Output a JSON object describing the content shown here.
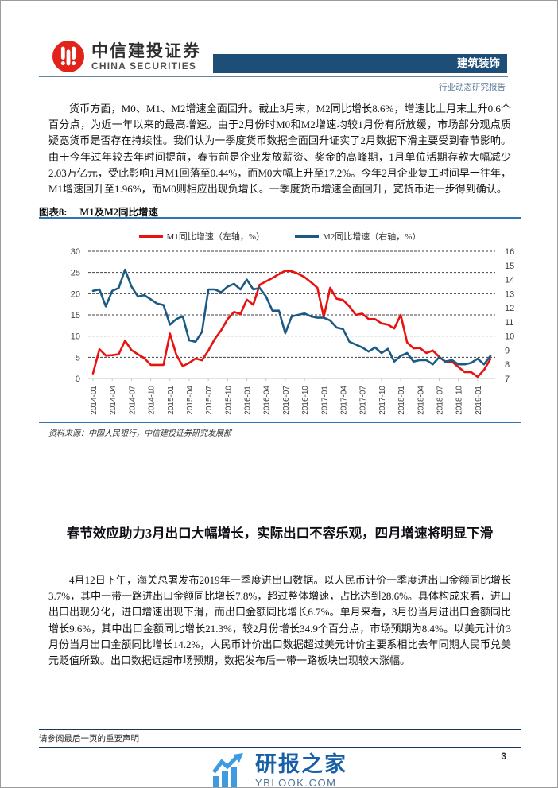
{
  "header": {
    "company_cn": "中信建投证券",
    "company_en": "CHINA SECURITIES",
    "sector": "建筑装饰",
    "report_type": "行业动态研究报告",
    "brand_red": "#e2231a",
    "sector_bar_color": "#1d4e77"
  },
  "sections": {
    "monetary_paragraph": "货币方面，M0、M1、M2增速全面回升。截止3月末，M2同比增长8.6%，增速比上月末上升0.6个百分点，为近一年以来的最高增速。由于2月份时M0和M2增速均较1月份有所放缓，市场部分观点质疑宽货币是否存在持续性。我们认为一季度货币数据全面回升证实了2月数据下滑主要受到春节影响。由于今年过年较去年时间提前，春节前是企业发放薪资、奖金的高峰期，1月单位活期存款大幅减少2.03万亿元，受此影响1月M1回落至0.44%，而M0大幅上升至17.2%。今年2月企业复工时间早于往年，M1增速回升至1.96%，而M0则相应出现负增长。一季度货币增速全面回升，宽货币进一步得到确认。",
    "export_heading": "春节效应助力3月出口大幅增长，实际出口不容乐观，四月增速将明显下滑",
    "export_paragraph": "4月12日下午，海关总署发布2019年一季度进出口数据。以人民币计价一季度进出口金额同比增长3.7%，其中一带一路进出口金额同比增长7.8%，超过整体增速，占比达到28.6%。具体构成来看，进口出口出现分化，进口增速出现下滑，而出口金额同比增长6.7%。单月来看，3月份当月进出口金额同比增长9.6%，其中出口金额同比增长21.3%，较2月份增长34.9个百分点，市场预期为8.4%。以美元计价3月份当月出口金额同比增长14.2%，人民币计价出口数据超过美元计价主要系相比去年同期人民币兑美元贬值所致。出口数据远超市场预期，数据发布后一带一路板块出现较大涨幅。"
  },
  "figure": {
    "label": "图表8:",
    "title": "M1及M2同比增速",
    "source": "资料来源：中国人民银行，中信建投证券研究发展部",
    "rule_color": "#2e74b5"
  },
  "chart_data": {
    "type": "line",
    "title": "M1及M2同比增速",
    "x": [
      "2014-01",
      "2014-02",
      "2014-03",
      "2014-04",
      "2014-05",
      "2014-06",
      "2014-07",
      "2014-08",
      "2014-09",
      "2014-10",
      "2014-11",
      "2014-12",
      "2015-01",
      "2015-02",
      "2015-03",
      "2015-04",
      "2015-05",
      "2015-06",
      "2015-07",
      "2015-08",
      "2015-09",
      "2015-10",
      "2015-11",
      "2015-12",
      "2016-01",
      "2016-02",
      "2016-03",
      "2016-04",
      "2016-05",
      "2016-06",
      "2016-07",
      "2016-08",
      "2016-09",
      "2016-10",
      "2016-11",
      "2016-12",
      "2017-01",
      "2017-02",
      "2017-03",
      "2017-04",
      "2017-05",
      "2017-06",
      "2017-07",
      "2017-08",
      "2017-09",
      "2017-10",
      "2017-11",
      "2017-12",
      "2018-01",
      "2018-02",
      "2018-03",
      "2018-04",
      "2018-05",
      "2018-06",
      "2018-07",
      "2018-08",
      "2018-09",
      "2018-10",
      "2018-11",
      "2018-12",
      "2019-01",
      "2019-02",
      "2019-03"
    ],
    "x_tick_labels": [
      "2014-01",
      "2014-04",
      "2014-07",
      "2014-10",
      "2015-01",
      "2015-04",
      "2015-07",
      "2015-10",
      "2016-01",
      "2016-04",
      "2016-07",
      "2016-10",
      "2017-01",
      "2017-04",
      "2017-07",
      "2017-10",
      "2018-01",
      "2018-04",
      "2018-07",
      "2018-10",
      "2019-01"
    ],
    "series": [
      {
        "name": "M1同比增速（左轴，%）",
        "axis": "left",
        "color": "#e8120f",
        "values": [
          1.2,
          6.9,
          5.4,
          5.5,
          5.7,
          8.9,
          6.7,
          5.7,
          4.8,
          3.2,
          3.2,
          3.2,
          10.6,
          5.6,
          2.9,
          3.7,
          4.7,
          4.3,
          6.6,
          9.3,
          11.4,
          14.0,
          15.7,
          15.2,
          18.6,
          17.4,
          22.1,
          22.9,
          23.7,
          24.6,
          25.4,
          25.3,
          24.7,
          23.9,
          22.7,
          21.4,
          14.5,
          21.4,
          18.8,
          18.5,
          17.0,
          15.0,
          15.3,
          14.0,
          14.0,
          13.0,
          12.7,
          11.8,
          15.0,
          8.5,
          7.1,
          7.2,
          6.0,
          6.6,
          5.1,
          3.9,
          4.0,
          2.7,
          1.5,
          1.5,
          0.4,
          2.0,
          4.6
        ]
      },
      {
        "name": "M2同比增速（右轴，%）",
        "axis": "right",
        "color": "#1b5a84",
        "values": [
          13.2,
          13.3,
          12.1,
          13.2,
          13.4,
          14.7,
          13.5,
          12.8,
          12.9,
          12.6,
          12.3,
          12.2,
          10.8,
          11.2,
          11.4,
          9.7,
          9.6,
          10.3,
          13.3,
          13.3,
          13.1,
          13.5,
          13.7,
          13.3,
          14.0,
          13.3,
          13.4,
          12.8,
          11.8,
          11.8,
          10.2,
          11.4,
          11.5,
          11.6,
          11.4,
          11.3,
          11.3,
          11.1,
          10.6,
          10.5,
          9.6,
          9.4,
          9.2,
          8.9,
          9.2,
          8.8,
          9.1,
          8.2,
          8.6,
          8.8,
          8.2,
          8.3,
          8.3,
          8.0,
          8.5,
          8.2,
          8.3,
          8.0,
          8.0,
          8.1,
          8.4,
          8.0,
          8.6
        ]
      }
    ],
    "left_axis": {
      "min": 0,
      "max": 30,
      "step": 5
    },
    "right_axis": {
      "min": 7,
      "max": 16,
      "step": 1
    },
    "grid": "horizontal dashed",
    "legend_position": "top"
  },
  "footer": {
    "disclaimer": "请参阅最后一页的重要声明",
    "page_number": "3"
  },
  "watermark": {
    "name_cn": "研报之家",
    "domain": "YBLOOK.COM",
    "icon_color": "#3f9be0"
  }
}
